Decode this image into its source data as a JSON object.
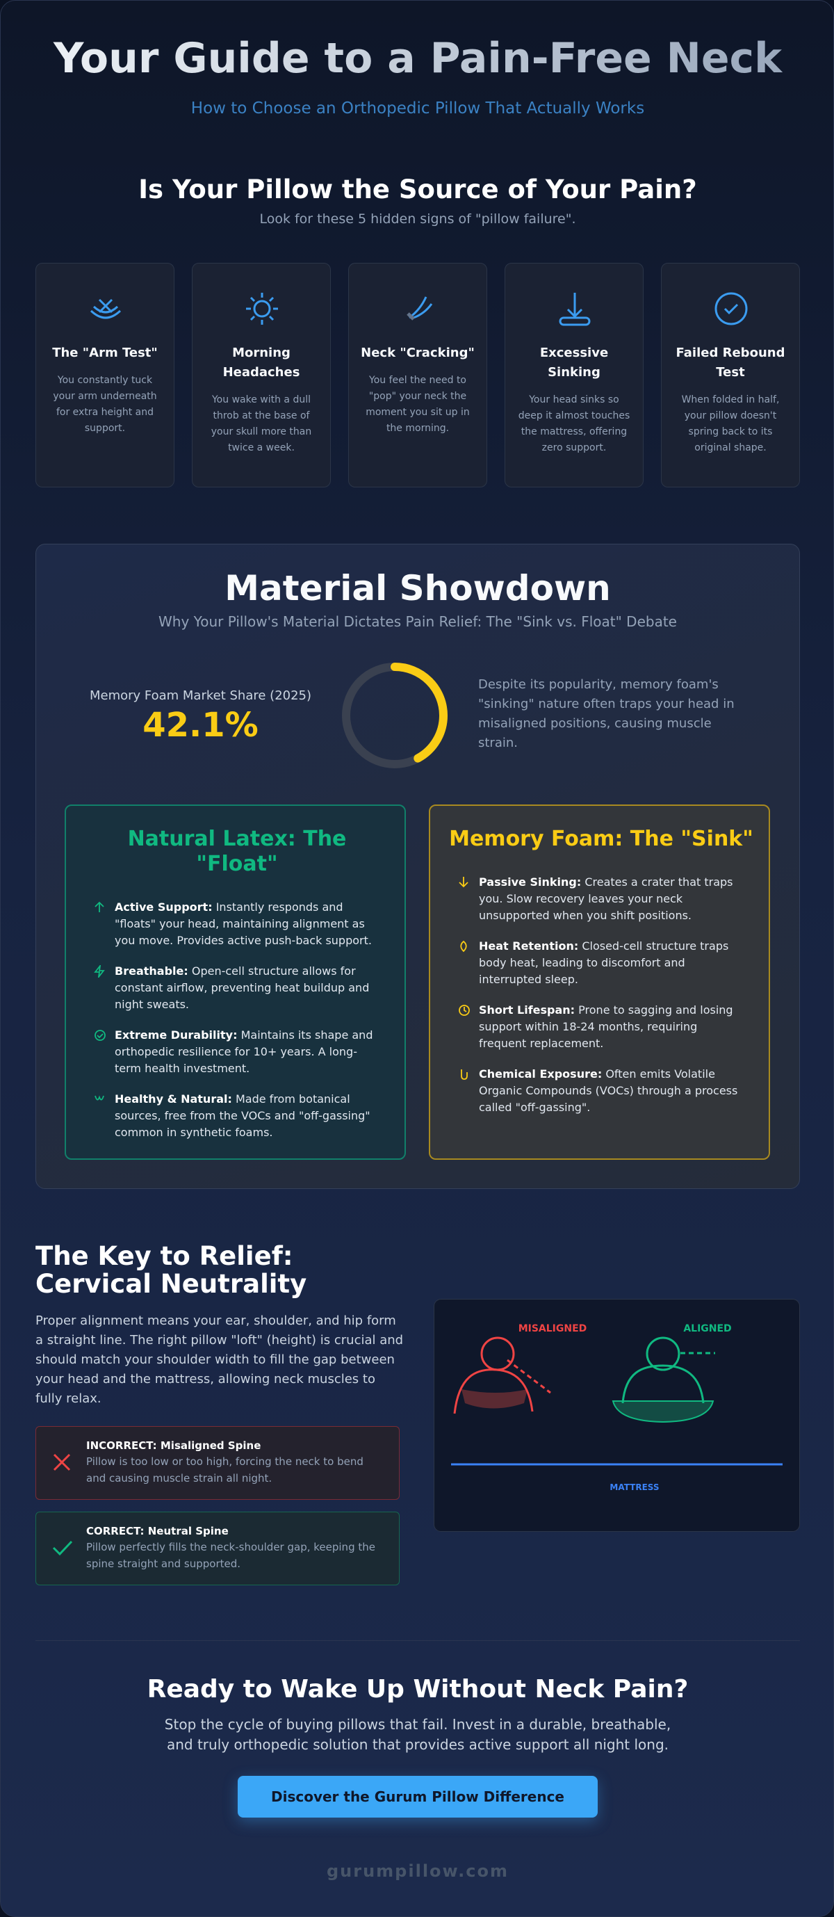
{
  "header": {
    "title": "Your Guide to a Pain-Free Neck",
    "subtitle": "How to Choose an Orthopedic Pillow That Actually Works"
  },
  "signs": {
    "title": "Is Your Pillow the Source of Your Pain?",
    "subtitle": "Look for these 5 hidden signs of \"pillow failure\".",
    "cards": [
      {
        "title": "The \"Arm Test\"",
        "text": "You constantly tuck your arm underneath for extra height and support."
      },
      {
        "title": "Morning Headaches",
        "text": "You wake with a dull throb at the base of your skull more than twice a week."
      },
      {
        "title": "Neck \"Cracking\"",
        "text": "You feel the need to \"pop\" your neck the moment you sit up in the morning."
      },
      {
        "title": "Excessive Sinking",
        "text": "Your head sinks so deep it almost touches the mattress, offering zero support."
      },
      {
        "title": "Failed Rebound Test",
        "text": "When folded in half, your pillow doesn't spring back to its original shape."
      }
    ]
  },
  "materials": {
    "title": "Material Showdown",
    "subtitle": "Why Your Pillow's Material Dictates Pain Relief: The \"Sink vs. Float\" Debate",
    "market_share": {
      "label": "Memory Foam Market Share (2025)",
      "value": 42.1,
      "value_label": "42.1%"
    },
    "note": "Despite its popularity, memory foam's \"sinking\" nature often traps your head in misaligned positions, causing muscle strain.",
    "latex": {
      "title": "Natural Latex: The \"Float\"",
      "items": [
        {
          "label": "Active Support:",
          "text": "Instantly responds and \"floats\" your head, maintaining alignment as you move. Provides active push-back support."
        },
        {
          "label": "Breathable:",
          "text": "Open-cell structure allows for constant airflow, preventing heat buildup and night sweats."
        },
        {
          "label": "Extreme Durability:",
          "text": "Maintains its shape and orthopedic resilience for 10+ years. A long-term health investment."
        },
        {
          "label": "Healthy & Natural:",
          "text": "Made from botanical sources, free from the VOCs and \"off-gassing\" common in synthetic foams."
        }
      ]
    },
    "foam": {
      "title": "Memory Foam: The \"Sink\"",
      "items": [
        {
          "label": "Passive Sinking:",
          "text": "Creates a crater that traps you. Slow recovery leaves your neck unsupported when you shift positions."
        },
        {
          "label": "Heat Retention:",
          "text": "Closed-cell structure traps body heat, leading to discomfort and interrupted sleep."
        },
        {
          "label": "Short Lifespan:",
          "text": "Prone to sagging and losing support within 18-24 months, requiring frequent replacement."
        },
        {
          "label": "Chemical Exposure:",
          "text": "Often emits Volatile Organic Compounds (VOCs) through a process called \"off-gassing\"."
        }
      ]
    }
  },
  "alignment": {
    "title": "The Key to Relief: Cervical Neutrality",
    "text": "Proper alignment means your ear, shoulder, and hip form a straight line. The right pillow \"loft\" (height) is crucial and should match your shoulder width to fill the gap between your head and the mattress, allowing neck muscles to fully relax.",
    "incorrect": {
      "title": "INCORRECT: Misaligned Spine",
      "text": "Pillow is too low or too high, forcing the neck to bend and causing muscle strain all night."
    },
    "correct": {
      "title": "CORRECT: Neutral Spine",
      "text": "Pillow perfectly fills the neck-shoulder gap, keeping the spine straight and supported."
    },
    "diagram": {
      "misaligned": "MISALIGNED",
      "aligned": "ALIGNED",
      "mattress": "MATTRESS"
    }
  },
  "cta": {
    "title": "Ready to Wake Up Without Neck Pain?",
    "text": "Stop the cycle of buying pillows that fail. Invest in a durable, breathable, and truly orthopedic solution that provides active support all night long.",
    "button": "Discover the Gurum Pillow Difference"
  },
  "footer": "gurumpillow.com"
}
